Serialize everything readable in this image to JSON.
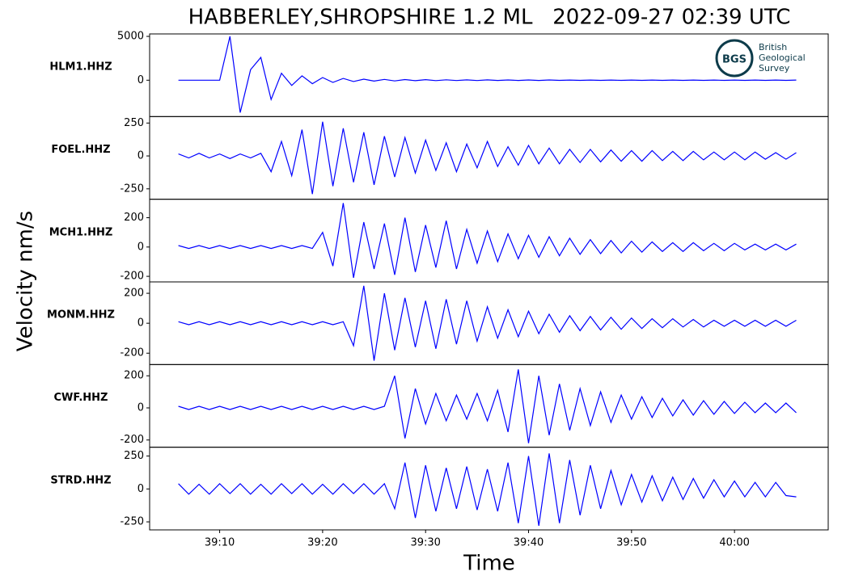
{
  "figure": {
    "title": "HABBERLEY,SHROPSHIRE 1.2 ML   2022-09-27 02:39 UTC",
    "ylabel": "Velocity nm/s",
    "xlabel": "Time",
    "xlim": [
      3.2,
      69.1
    ],
    "xticks": [
      {
        "value": 10,
        "label": "39:10"
      },
      {
        "value": 20,
        "label": "39:20"
      },
      {
        "value": 30,
        "label": "39:30"
      },
      {
        "value": 40,
        "label": "39:40"
      },
      {
        "value": 50,
        "label": "39:50"
      },
      {
        "value": 60,
        "label": "40:00"
      }
    ],
    "x": [
      6,
      7,
      8,
      9,
      10,
      11,
      12,
      13,
      14,
      15,
      16,
      17,
      18,
      19,
      20,
      21,
      22,
      23,
      24,
      25,
      26,
      27,
      28,
      29,
      30,
      31,
      32,
      33,
      34,
      35,
      36,
      37,
      38,
      39,
      40,
      41,
      42,
      43,
      44,
      45,
      46,
      47,
      48,
      49,
      50,
      51,
      52,
      53,
      54,
      55,
      56,
      57,
      58,
      59,
      60,
      61,
      62,
      63,
      64,
      65,
      66
    ]
  },
  "logo": {
    "mark": "BGS",
    "line1": "British",
    "line2": "Geological",
    "line3": "Survey"
  },
  "chart_data": [
    {
      "type": "line",
      "label": "HLM1.HHZ",
      "color": "#0000ff",
      "ylim": [
        -4150,
        5280
      ],
      "yticks": [
        5000,
        0
      ],
      "values": [
        0,
        0,
        0,
        0,
        0,
        5000,
        -3700,
        1200,
        2600,
        -2200,
        800,
        -600,
        500,
        -400,
        300,
        -250,
        200,
        -150,
        120,
        -100,
        90,
        -80,
        70,
        -60,
        60,
        -50,
        50,
        -40,
        40,
        -40,
        40,
        -30,
        30,
        -30,
        30,
        -30,
        30,
        -20,
        20,
        -20,
        20,
        -20,
        20,
        -20,
        20,
        -20,
        20,
        -20,
        20,
        -20,
        20,
        -20,
        20,
        -20,
        20,
        -20,
        20,
        -20,
        20,
        -20,
        20
      ]
    },
    {
      "type": "line",
      "label": "FOEL.HHZ",
      "color": "#0000ff",
      "ylim": [
        -329,
        299
      ],
      "yticks": [
        250,
        0,
        -250
      ],
      "values": [
        15,
        -15,
        20,
        -15,
        15,
        -20,
        15,
        -15,
        20,
        -120,
        110,
        -150,
        200,
        -290,
        260,
        -230,
        210,
        -200,
        180,
        -220,
        150,
        -160,
        140,
        -130,
        120,
        -110,
        100,
        -120,
        90,
        -90,
        110,
        -80,
        70,
        -70,
        80,
        -60,
        60,
        -60,
        50,
        -50,
        50,
        -45,
        45,
        -40,
        40,
        -40,
        40,
        -35,
        35,
        -35,
        35,
        -30,
        30,
        -30,
        30,
        -30,
        30,
        -25,
        25,
        -25,
        25
      ]
    },
    {
      "type": "line",
      "label": "MCH1.HHZ",
      "color": "#0000ff",
      "ylim": [
        -238,
        326
      ],
      "yticks": [
        200,
        0,
        -200
      ],
      "values": [
        10,
        -10,
        10,
        -10,
        10,
        -10,
        10,
        -10,
        10,
        -10,
        10,
        -10,
        10,
        -10,
        100,
        -130,
        300,
        -210,
        170,
        -150,
        160,
        -190,
        200,
        -170,
        150,
        -140,
        180,
        -150,
        120,
        -110,
        110,
        -100,
        90,
        -80,
        80,
        -70,
        70,
        -60,
        60,
        -50,
        50,
        -45,
        45,
        -40,
        40,
        -35,
        35,
        -30,
        30,
        -30,
        30,
        -25,
        25,
        -25,
        25,
        -20,
        20,
        -20,
        20,
        -20,
        20
      ]
    },
    {
      "type": "line",
      "label": "MONM.HHZ",
      "color": "#0000ff",
      "ylim": [
        -276,
        276
      ],
      "yticks": [
        200,
        0,
        -200
      ],
      "values": [
        10,
        -10,
        10,
        -10,
        10,
        -10,
        10,
        -10,
        10,
        -10,
        10,
        -10,
        10,
        -10,
        10,
        -10,
        10,
        -150,
        250,
        -250,
        200,
        -180,
        170,
        -160,
        150,
        -170,
        160,
        -140,
        150,
        -120,
        110,
        -100,
        90,
        -90,
        80,
        -70,
        60,
        -60,
        50,
        -50,
        45,
        -45,
        40,
        -40,
        35,
        -35,
        30,
        -30,
        30,
        -25,
        25,
        -25,
        20,
        -20,
        20,
        -20,
        20,
        -20,
        20,
        -20,
        20
      ]
    },
    {
      "type": "line",
      "label": "CWF.HHZ",
      "color": "#0000ff",
      "ylim": [
        -245,
        270
      ],
      "yticks": [
        200,
        0,
        -200
      ],
      "values": [
        10,
        -10,
        10,
        -10,
        10,
        -10,
        10,
        -10,
        10,
        -10,
        10,
        -10,
        10,
        -10,
        10,
        -10,
        10,
        -10,
        10,
        -10,
        10,
        200,
        -190,
        120,
        -100,
        90,
        -80,
        80,
        -70,
        90,
        -80,
        110,
        -150,
        240,
        -220,
        200,
        -170,
        150,
        -140,
        120,
        -110,
        100,
        -90,
        80,
        -70,
        70,
        -60,
        60,
        -50,
        50,
        -45,
        45,
        -40,
        40,
        -35,
        35,
        -30,
        30,
        -30,
        30,
        -30
      ]
    },
    {
      "type": "line",
      "label": "STRD.HHZ",
      "color": "#0000ff",
      "ylim": [
        -311,
        317
      ],
      "yticks": [
        250,
        0,
        -250
      ],
      "values": [
        40,
        -40,
        35,
        -40,
        40,
        -35,
        40,
        -40,
        35,
        -40,
        40,
        -35,
        40,
        -40,
        35,
        -40,
        40,
        -35,
        40,
        -40,
        40,
        -150,
        200,
        -220,
        180,
        -170,
        160,
        -150,
        170,
        -160,
        150,
        -170,
        200,
        -260,
        250,
        -280,
        270,
        -260,
        220,
        -200,
        180,
        -150,
        140,
        -120,
        110,
        -100,
        100,
        -90,
        90,
        -80,
        80,
        -70,
        70,
        -60,
        60,
        -60,
        50,
        -60,
        50,
        -50,
        -60
      ]
    }
  ]
}
